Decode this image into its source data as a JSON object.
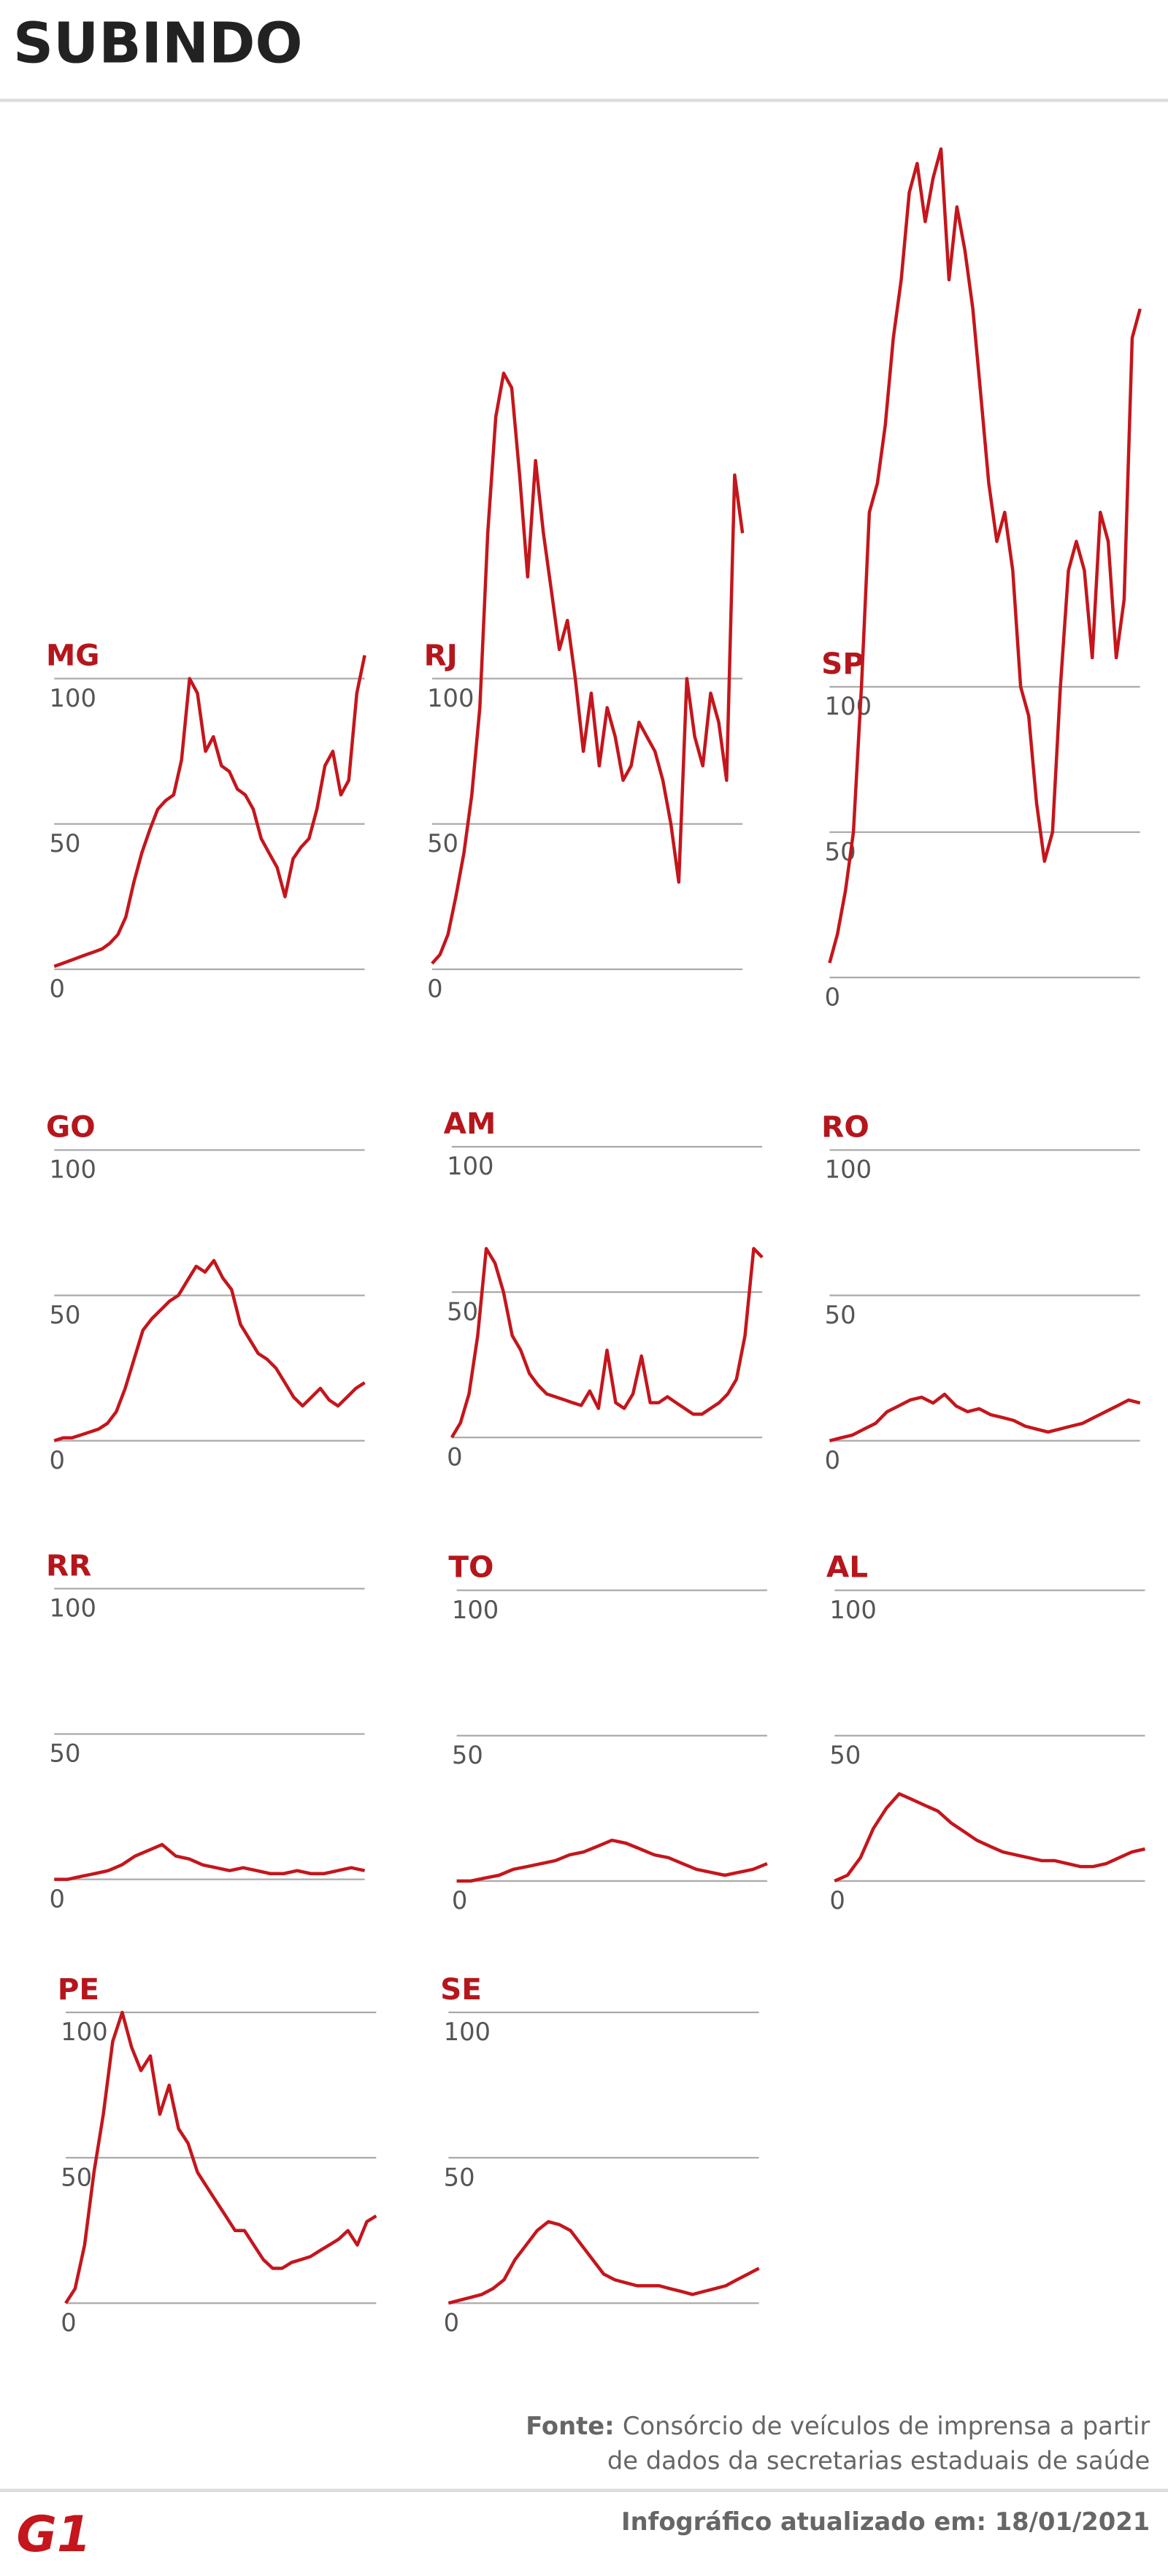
{
  "header": {
    "title": "SUBINDO"
  },
  "chart_data": [
    {
      "type": "line",
      "title": "MG",
      "color": "#c4161c",
      "ylim": [
        0,
        110
      ],
      "yticks": [
        0,
        50,
        100
      ],
      "values": [
        1,
        2,
        3,
        4,
        5,
        6,
        7,
        9,
        12,
        18,
        30,
        40,
        48,
        55,
        58,
        60,
        72,
        100,
        95,
        75,
        80,
        70,
        68,
        62,
        60,
        55,
        45,
        40,
        35,
        25,
        38,
        42,
        45,
        55,
        70,
        75,
        60,
        65,
        95,
        108
      ]
    },
    {
      "type": "line",
      "title": "RJ",
      "color": "#c4161c",
      "ylim": [
        0,
        210
      ],
      "yticks": [
        0,
        50,
        100
      ],
      "values": [
        2,
        5,
        12,
        25,
        40,
        60,
        90,
        150,
        190,
        205,
        200,
        170,
        135,
        175,
        150,
        130,
        110,
        120,
        100,
        75,
        95,
        70,
        90,
        80,
        65,
        70,
        85,
        80,
        75,
        65,
        50,
        30,
        100,
        80,
        70,
        95,
        85,
        65,
        170,
        150
      ]
    },
    {
      "type": "line",
      "title": "SP",
      "color": "#c4161c",
      "ylim": [
        0,
        290
      ],
      "yticks": [
        0,
        50,
        100
      ],
      "values": [
        5,
        15,
        30,
        50,
        100,
        160,
        170,
        190,
        220,
        240,
        270,
        280,
        260,
        275,
        285,
        240,
        265,
        250,
        230,
        200,
        170,
        150,
        160,
        140,
        100,
        90,
        60,
        40,
        50,
        100,
        140,
        150,
        140,
        110,
        160,
        150,
        110,
        130,
        220,
        230
      ]
    },
    {
      "type": "line",
      "title": "GO",
      "color": "#c4161c",
      "ylim": [
        0,
        100
      ],
      "yticks": [
        0,
        50,
        100
      ],
      "values": [
        0,
        1,
        1,
        2,
        3,
        4,
        6,
        10,
        18,
        28,
        38,
        42,
        45,
        48,
        50,
        55,
        60,
        58,
        62,
        56,
        52,
        40,
        35,
        30,
        28,
        25,
        20,
        15,
        12,
        15,
        18,
        14,
        12,
        15,
        18,
        20
      ]
    },
    {
      "type": "line",
      "title": "AM",
      "color": "#c4161c",
      "ylim": [
        0,
        100
      ],
      "yticks": [
        0,
        50,
        100
      ],
      "values": [
        0,
        5,
        15,
        35,
        65,
        60,
        50,
        35,
        30,
        22,
        18,
        15,
        14,
        13,
        12,
        11,
        16,
        10,
        30,
        12,
        10,
        15,
        28,
        12,
        12,
        14,
        12,
        10,
        8,
        8,
        10,
        12,
        15,
        20,
        35,
        65,
        62
      ]
    },
    {
      "type": "line",
      "title": "RO",
      "color": "#c4161c",
      "ylim": [
        0,
        100
      ],
      "yticks": [
        0,
        50,
        100
      ],
      "values": [
        0,
        1,
        2,
        4,
        6,
        10,
        12,
        14,
        15,
        13,
        16,
        12,
        10,
        11,
        9,
        8,
        7,
        5,
        4,
        3,
        4,
        5,
        6,
        8,
        10,
        12,
        14,
        13
      ]
    },
    {
      "type": "line",
      "title": "RR",
      "color": "#c4161c",
      "ylim": [
        0,
        100
      ],
      "yticks": [
        0,
        50,
        100
      ],
      "values": [
        0,
        0,
        1,
        2,
        3,
        5,
        8,
        10,
        12,
        8,
        7,
        5,
        4,
        3,
        4,
        3,
        2,
        2,
        3,
        2,
        2,
        3,
        4,
        3
      ]
    },
    {
      "type": "line",
      "title": "TO",
      "color": "#c4161c",
      "ylim": [
        0,
        100
      ],
      "yticks": [
        0,
        50,
        100
      ],
      "values": [
        0,
        0,
        1,
        2,
        4,
        5,
        6,
        7,
        9,
        10,
        12,
        14,
        13,
        11,
        9,
        8,
        6,
        4,
        3,
        2,
        3,
        4,
        6
      ]
    },
    {
      "type": "line",
      "title": "AL",
      "color": "#c4161c",
      "ylim": [
        0,
        100
      ],
      "yticks": [
        0,
        50,
        100
      ],
      "values": [
        0,
        2,
        8,
        18,
        25,
        30,
        28,
        26,
        24,
        20,
        17,
        14,
        12,
        10,
        9,
        8,
        7,
        7,
        6,
        5,
        5,
        6,
        8,
        10,
        11
      ]
    },
    {
      "type": "line",
      "title": "PE",
      "color": "#c4161c",
      "ylim": [
        0,
        110
      ],
      "yticks": [
        0,
        50,
        100
      ],
      "values": [
        0,
        5,
        20,
        45,
        65,
        90,
        100,
        88,
        80,
        85,
        65,
        75,
        60,
        55,
        45,
        40,
        35,
        30,
        25,
        25,
        20,
        15,
        12,
        12,
        14,
        15,
        16,
        18,
        20,
        22,
        25,
        20,
        28,
        30
      ]
    },
    {
      "type": "line",
      "title": "SE",
      "color": "#c4161c",
      "ylim": [
        0,
        100
      ],
      "yticks": [
        0,
        50,
        100
      ],
      "values": [
        0,
        1,
        2,
        3,
        5,
        8,
        15,
        20,
        25,
        28,
        27,
        25,
        20,
        15,
        10,
        8,
        7,
        6,
        6,
        6,
        5,
        4,
        3,
        4,
        5,
        6,
        8,
        10,
        12
      ]
    }
  ],
  "footer": {
    "source_label": "Fonte:",
    "source_line1": "Consórcio de veículos de imprensa a partir",
    "source_line2": "de dados da secretarias estaduais de saúde",
    "logo": "G1",
    "updated": "Infográfico atualizado em: 18/01/2021"
  }
}
